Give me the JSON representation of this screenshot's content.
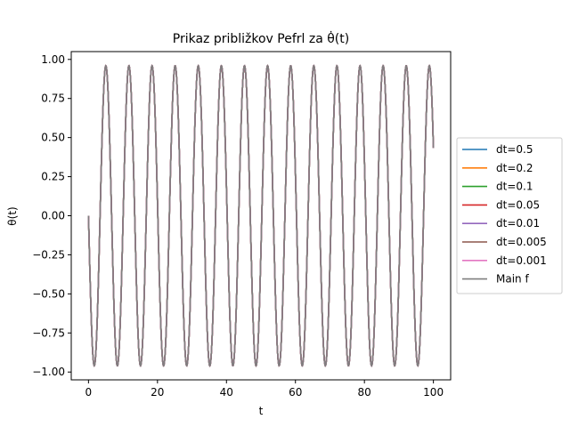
{
  "chart_data": {
    "type": "line",
    "title": "Prikaz približkov Pefrl za θ̇(t)",
    "xlabel": "t",
    "ylabel": "θ(t)",
    "xlim": [
      -5,
      105
    ],
    "ylim": [
      -1.05,
      1.05
    ],
    "x_ticks": [
      0,
      20,
      40,
      60,
      80,
      100
    ],
    "x_tick_labels": [
      "0",
      "20",
      "40",
      "60",
      "80",
      "100"
    ],
    "y_ticks": [
      1.0,
      0.75,
      0.5,
      0.25,
      0.0,
      -0.25,
      -0.5,
      -0.75,
      -1.0
    ],
    "y_tick_labels": [
      "1.00",
      "0.75",
      "0.50",
      "0.25",
      "0.00",
      "−0.25",
      "−0.50",
      "−0.75",
      "−1.00"
    ],
    "grid": false,
    "legend_position": "outside-right",
    "signal": {
      "shape": "theta(t) = -0.96 * sin(2*pi*t / 6.7)",
      "amplitude": 0.96,
      "period": 6.7,
      "t_start": 0,
      "t_end": 100
    },
    "series": [
      {
        "name": "dt=0.5",
        "color": "#1f77b4"
      },
      {
        "name": "dt=0.2",
        "color": "#ff7f0e"
      },
      {
        "name": "dt=0.1",
        "color": "#2ca02c"
      },
      {
        "name": "dt=0.05",
        "color": "#d62728"
      },
      {
        "name": "dt=0.01",
        "color": "#9467bd"
      },
      {
        "name": "dt=0.005",
        "color": "#8c564b"
      },
      {
        "name": "dt=0.001",
        "color": "#e377c2"
      },
      {
        "name": "Main f",
        "color": "#7f7f7f"
      }
    ]
  }
}
